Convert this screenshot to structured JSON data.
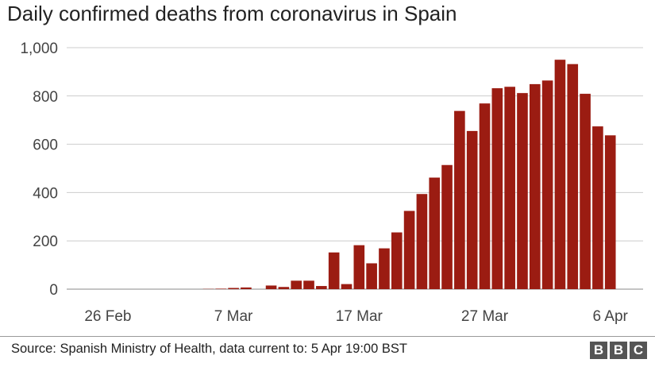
{
  "chart_data": {
    "type": "bar",
    "title": "Daily confirmed deaths from coronavirus in Spain",
    "xlabel": "",
    "ylabel": "",
    "ylim": [
      0,
      1000
    ],
    "yticks": [
      0,
      200,
      400,
      600,
      800,
      1000
    ],
    "ytick_labels": [
      "0",
      "200",
      "400",
      "600",
      "800",
      "1,000"
    ],
    "grid": true,
    "legend": "none",
    "bar_color": "#9b1c12",
    "x_start": "2020-02-26",
    "categories": [
      "26 Feb",
      "27 Feb",
      "28 Feb",
      "29 Feb",
      "1 Mar",
      "2 Mar",
      "3 Mar",
      "4 Mar",
      "5 Mar",
      "6 Mar",
      "7 Mar",
      "8 Mar",
      "9 Mar",
      "10 Mar",
      "11 Mar",
      "12 Mar",
      "13 Mar",
      "14 Mar",
      "15 Mar",
      "16 Mar",
      "17 Mar",
      "18 Mar",
      "19 Mar",
      "20 Mar",
      "21 Mar",
      "22 Mar",
      "23 Mar",
      "24 Mar",
      "25 Mar",
      "26 Mar",
      "27 Mar",
      "28 Mar",
      "29 Mar",
      "30 Mar",
      "31 Mar",
      "1 Apr",
      "2 Apr",
      "3 Apr",
      "4 Apr",
      "5 Apr",
      "6 Apr"
    ],
    "values": [
      0,
      0,
      0,
      0,
      0,
      0,
      0,
      0,
      1,
      2,
      5,
      7,
      0,
      15,
      9,
      35,
      35,
      13,
      152,
      21,
      182,
      107,
      169,
      235,
      324,
      394,
      462,
      514,
      738,
      655,
      769,
      832,
      838,
      812,
      849,
      864,
      950,
      932,
      809,
      674,
      637
    ],
    "tick_labels": [
      {
        "label": "26 Feb",
        "index": 0
      },
      {
        "label": "7 Mar",
        "index": 10
      },
      {
        "label": "17 Mar",
        "index": 20
      },
      {
        "label": "27 Mar",
        "index": 30
      },
      {
        "label": "6 Apr",
        "index": 40
      }
    ]
  },
  "footer": {
    "source": "Source: Spanish Ministry of Health, data current to: 5 Apr 19:00 BST",
    "logo_letters": [
      "B",
      "B",
      "C"
    ]
  }
}
